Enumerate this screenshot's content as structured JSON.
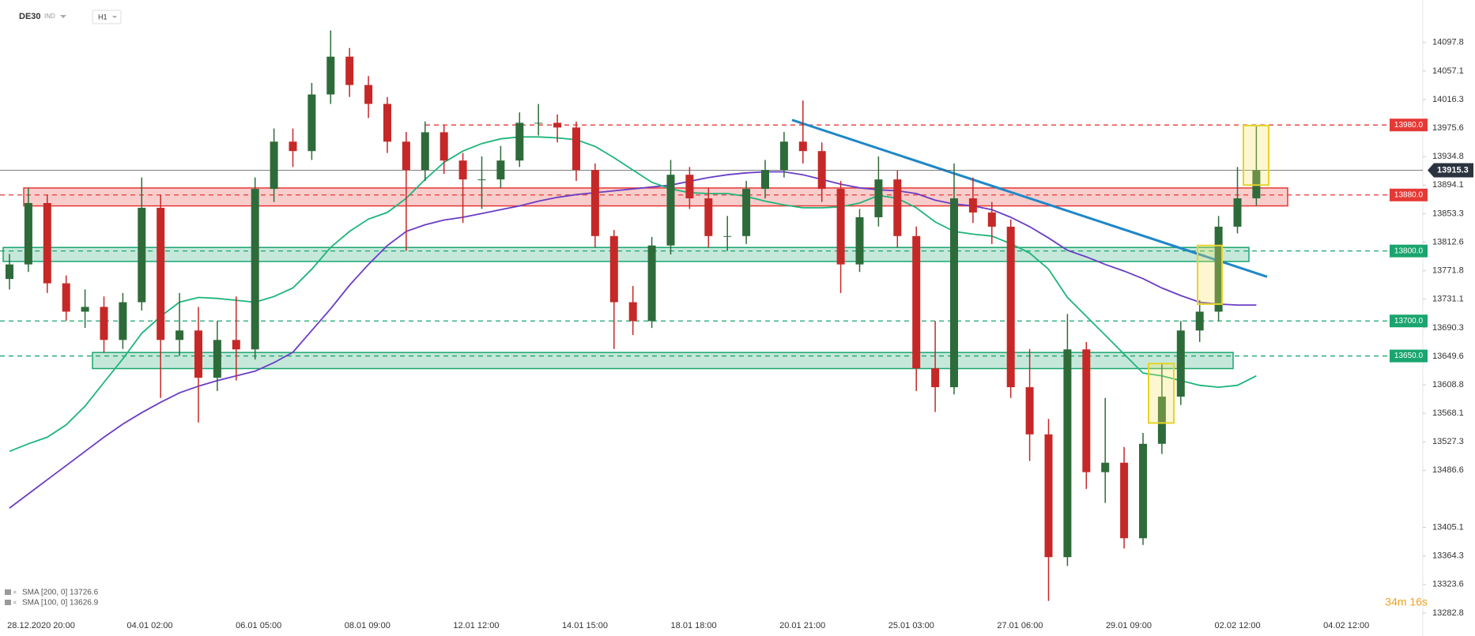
{
  "chart_data": {
    "type": "candlestick",
    "symbol": "DE30",
    "market": "IND",
    "interval": "H1",
    "timer": "34m 16s",
    "x_labels": [
      "28.12.2020  20:00",
      "04.01  02:00",
      "06.01  05:00",
      "08.01  09:00",
      "12.01  12:00",
      "14.01  15:00",
      "18.01  18:00",
      "20.01  21:00",
      "25.01  03:00",
      "27.01  06:00",
      "29.01  09:00",
      "02.02  12:00",
      "04.02  12:00"
    ],
    "ylim": [
      13268,
      14145
    ],
    "yticks": [
      14097.8,
      14057.1,
      14016.3,
      13975.6,
      13934.8,
      13894.1,
      13853.3,
      13812.6,
      13771.8,
      13731.1,
      13690.3,
      13649.6,
      13608.8,
      13568.1,
      13527.3,
      13486.6,
      13405.1,
      13364.3,
      13323.6,
      13282.8
    ],
    "up_color": "#2e6b3a",
    "down_color": "#c62828",
    "open": [
      13760.0,
      13780.8,
      13868.5,
      13753.8,
      13713.3,
      13720.1,
      13672.9,
      13726.8,
      13861.7,
      13672.9,
      13686.4,
      13618.9,
      13672.9,
      13659.4,
      13888.7,
      13956.2,
      13942.7,
      14023.6,
      14077.6,
      14037.1,
      14010.1,
      13956.2,
      13915.7,
      13969.6,
      13929.2,
      13902.2,
      13902.2,
      13929.2,
      13983.1,
      13983.1,
      13976.4,
      13915.7,
      13821.3,
      13726.8,
      13699.8,
      13807.8,
      13908.9,
      13875.2,
      13821.3,
      13821.3,
      13888.7,
      13915.7,
      13956.2,
      13942.7,
      13888.7,
      13780.8,
      13848.2,
      13902.2,
      13821.3,
      13632.4,
      13605.4,
      13875.2,
      13855.0,
      13834.7,
      13605.4,
      13538.0,
      13362.6,
      13659.4,
      13484.0,
      13497.5,
      13389.6,
      13524.5,
      13591.9,
      13686.4,
      13713.3,
      13834.7,
      13875.2
    ],
    "high": [
      13795.8,
      13890.0,
      13880.0,
      13765.0,
      13745.0,
      13735.0,
      13740.0,
      13905.0,
      13880.0,
      13740.0,
      13720.0,
      13700.0,
      13735.0,
      13905.0,
      13975.0,
      13975.0,
      14040.0,
      14115.0,
      14090.0,
      14050.0,
      14020.0,
      13970.0,
      13985.0,
      13980.0,
      13940.0,
      13935.0,
      13950.0,
      13998.0,
      14010.0,
      13995.0,
      13985.0,
      13925.0,
      13830.0,
      13750.0,
      13820.0,
      13930.0,
      13920.0,
      13890.0,
      13850.0,
      13900.0,
      13930.0,
      13970.0,
      14015.0,
      13955.0,
      13900.0,
      13860.0,
      13935.0,
      13915.0,
      13835.0,
      13700.0,
      13925.0,
      13905.0,
      13870.0,
      13845.0,
      13660.0,
      13560.0,
      13710.0,
      13670.0,
      13590.0,
      13520.0,
      13540.0,
      13640.0,
      13700.0,
      13730.0,
      13850.0,
      13920.0,
      13980.0
    ],
    "low": [
      13745.0,
      13770.0,
      13740.0,
      13700.0,
      13690.0,
      13655.0,
      13660.0,
      13715.0,
      13590.0,
      13650.0,
      13555.0,
      13600.0,
      13615.0,
      13645.0,
      13870.0,
      13920.0,
      13930.0,
      14010.0,
      14020.0,
      13990.0,
      13940.0,
      13800.0,
      13900.0,
      13910.0,
      13840.0,
      13860.0,
      13890.0,
      13920.0,
      13965.0,
      13955.0,
      13900.0,
      13805.0,
      13660.0,
      13680.0,
      13690.0,
      13795.0,
      13860.0,
      13805.0,
      13800.0,
      13810.0,
      13875.0,
      13905.0,
      13925.0,
      13870.0,
      13740.0,
      13770.0,
      13835.0,
      13805.0,
      13600.0,
      13570.0,
      13595.0,
      13840.0,
      13810.0,
      13590.0,
      13500.0,
      13300.0,
      13350.0,
      13460.0,
      13440.0,
      13375.0,
      13380.0,
      13510.0,
      13580.0,
      13670.0,
      13700.0,
      13825.0,
      13865.0
    ],
    "close": [
      13780.8,
      13868.5,
      13753.8,
      13713.3,
      13720.1,
      13672.9,
      13726.8,
      13861.7,
      13672.9,
      13686.4,
      13618.9,
      13672.9,
      13659.4,
      13888.7,
      13956.2,
      13942.7,
      14023.6,
      14077.6,
      14037.1,
      14010.1,
      13956.2,
      13915.7,
      13969.6,
      13929.2,
      13902.2,
      13902.2,
      13929.2,
      13983.1,
      13983.1,
      13976.4,
      13915.7,
      13821.3,
      13726.8,
      13699.8,
      13807.8,
      13908.9,
      13875.2,
      13821.3,
      13821.3,
      13888.7,
      13915.7,
      13956.2,
      13942.7,
      13888.7,
      13780.8,
      13848.2,
      13902.2,
      13821.3,
      13632.4,
      13605.4,
      13875.2,
      13855.0,
      13834.7,
      13605.4,
      13538.0,
      13362.6,
      13659.4,
      13484.0,
      13497.5,
      13389.6,
      13524.5,
      13591.9,
      13686.4,
      13713.3,
      13834.7,
      13875.2,
      13915.3
    ],
    "series": [
      {
        "name": "SMA [200, 0] 13726.6",
        "color": "#6a3dc4",
        "values": [
          13432.7,
          13453.0,
          13473.2,
          13493.4,
          13513.7,
          13533.9,
          13552.8,
          13569.0,
          13583.8,
          13597.3,
          13606.8,
          13614.9,
          13621.6,
          13628.3,
          13640.5,
          13655.3,
          13686.4,
          13717.4,
          13751.1,
          13780.8,
          13807.8,
          13828.0,
          13837.4,
          13844.2,
          13848.2,
          13853.6,
          13859.0,
          13864.4,
          13871.2,
          13876.6,
          13880.6,
          13883.3,
          13886.0,
          13888.7,
          13891.4,
          13894.1,
          13899.5,
          13904.9,
          13908.9,
          13911.6,
          13913.0,
          13913.0,
          13908.9,
          13902.2,
          13895.4,
          13890.1,
          13887.4,
          13886.0,
          13882.0,
          13872.5,
          13867.1,
          13864.4,
          13859.0,
          13848.2,
          13834.7,
          13818.6,
          13801.0,
          13791.6,
          13780.8,
          13771.3,
          13760.5,
          13747.1,
          13736.3,
          13726.8,
          13724.1,
          13722.8,
          13722.8
        ]
      },
      {
        "name": "SMA [100, 0] 13626.9",
        "color": "#1db57a",
        "values": [
          13513.7,
          13524.5,
          13533.9,
          13551.5,
          13578.4,
          13612.2,
          13645.9,
          13682.3,
          13706.6,
          13726.8,
          13733.6,
          13732.2,
          13729.5,
          13726.8,
          13734.9,
          13747.1,
          13774.0,
          13805.1,
          13828.0,
          13845.5,
          13855.0,
          13875.2,
          13902.2,
          13926.5,
          13942.7,
          13953.5,
          13960.2,
          13962.9,
          13962.9,
          13961.6,
          13958.9,
          13949.4,
          13933.2,
          13915.7,
          13898.1,
          13888.7,
          13883.3,
          13882.0,
          13882.0,
          13877.9,
          13871.2,
          13865.8,
          13861.7,
          13861.7,
          13863.1,
          13868.5,
          13879.3,
          13875.2,
          13861.7,
          13841.5,
          13828.0,
          13824.0,
          13821.3,
          13810.5,
          13797.0,
          13774.0,
          13733.6,
          13706.6,
          13679.6,
          13652.6,
          13625.6,
          13621.6,
          13614.9,
          13608.1,
          13605.4,
          13608.1,
          13621.6
        ]
      }
    ],
    "levels": [
      {
        "value": 13980,
        "label": "13980.0",
        "color": "#e53935"
      },
      {
        "value": 13880,
        "label": "13880.0",
        "color": "#e53935"
      },
      {
        "value": 13800,
        "label": "13800.0",
        "color": "#1aa56e"
      },
      {
        "value": 13700,
        "label": "13700.0",
        "color": "#1aa56e"
      },
      {
        "value": 13650,
        "label": "13650.0",
        "color": "#1aa56e"
      }
    ],
    "zones": [
      {
        "low": 13864.4,
        "high": 13890.0,
        "color": "#e53935"
      },
      {
        "low": 13785.0,
        "high": 13805.0,
        "color": "#1aa56e"
      },
      {
        "low": 13632.0,
        "high": 13655.0,
        "color": "#1aa56e"
      }
    ],
    "highlights": [
      {
        "low": 13554.2,
        "high": 13639.2
      },
      {
        "low": 13724.1,
        "high": 13807.8
      },
      {
        "low": 13894.1,
        "high": 13979.1
      }
    ],
    "trendline": {
      "from": 13987.2,
      "to": 13763.2,
      "color": "#1f87c8"
    }
  }
}
